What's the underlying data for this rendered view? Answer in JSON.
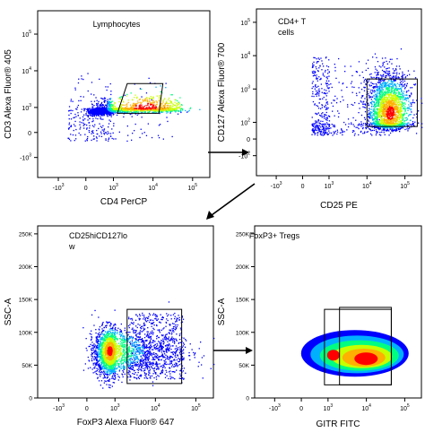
{
  "chart_data": [
    {
      "type": "scatter",
      "plot_style": "density pseudocolor",
      "gate_label": "Lymphocytes",
      "xlabel": "CD4 PerCP",
      "ylabel": "CD3 Alexa Fluor® 405",
      "x_scale": "biexponential",
      "y_scale": "biexponential",
      "x_ticks": [
        {
          "label": "-10",
          "sup": "3"
        },
        {
          "label": "0",
          "sup": ""
        },
        {
          "label": "10",
          "sup": "3"
        },
        {
          "label": "10",
          "sup": "4"
        },
        {
          "label": "10",
          "sup": "5"
        }
      ],
      "y_ticks": [
        {
          "label": "-10",
          "sup": "3"
        },
        {
          "label": "0",
          "sup": ""
        },
        {
          "label": "10",
          "sup": "3"
        },
        {
          "label": "10",
          "sup": "4"
        },
        {
          "label": "10",
          "sup": "5"
        }
      ],
      "population": {
        "x_center_log": 3.7,
        "y_center_log": 2.9,
        "x_spread": 1.2,
        "y_spread": 0.35
      },
      "gate": {
        "shape": "polygon",
        "x_range_log": [
          3.0,
          4.2
        ],
        "y_range_log": [
          2.3,
          3.7
        ]
      }
    },
    {
      "type": "scatter",
      "plot_style": "density pseudocolor",
      "gate_label_lines": [
        "CD4+ T",
        "cells"
      ],
      "xlabel": "CD25 PE",
      "ylabel": "CD127 Alexa Fluor® 700",
      "x_scale": "biexponential",
      "y_scale": "biexponential",
      "x_ticks": [
        {
          "label": "-10",
          "sup": "3"
        },
        {
          "label": "0",
          "sup": ""
        },
        {
          "label": "10",
          "sup": "3"
        },
        {
          "label": "10",
          "sup": "4"
        },
        {
          "label": "10",
          "sup": "5"
        }
      ],
      "y_ticks": [
        {
          "label": "-10",
          "sup": "2"
        },
        {
          "label": "0",
          "sup": ""
        },
        {
          "label": "10",
          "sup": "2"
        },
        {
          "label": "10",
          "sup": "3"
        },
        {
          "label": "10",
          "sup": "4"
        },
        {
          "label": "10",
          "sup": "5"
        }
      ],
      "population": {
        "x_center_log": 4.5,
        "y_center_log": 2.4,
        "x_spread": 0.5,
        "y_spread": 0.5
      },
      "gate": {
        "shape": "rectangle",
        "x_range_log": [
          4.0,
          5.3
        ],
        "y_range_log": [
          1.5,
          3.3
        ]
      }
    },
    {
      "type": "scatter",
      "plot_style": "density pseudocolor",
      "gate_label_lines": [
        "CD25hiCD127lo",
        "w"
      ],
      "xlabel": "FoxP3 Alexa Fluor® 647",
      "ylabel": "SSC-A",
      "x_scale": "biexponential",
      "y_scale": "linear",
      "ylim": [
        0,
        262144
      ],
      "x_ticks": [
        {
          "label": "-10",
          "sup": "3"
        },
        {
          "label": "0",
          "sup": ""
        },
        {
          "label": "10",
          "sup": "3"
        },
        {
          "label": "10",
          "sup": "4"
        },
        {
          "label": "10",
          "sup": "5"
        }
      ],
      "y_ticks": [
        "0",
        "50K",
        "100K",
        "150K",
        "200K",
        "250K"
      ],
      "population": {
        "x_center_log": 2.8,
        "y_center": 70000,
        "x_spread": 0.8,
        "y_spread": 20000
      },
      "gate": {
        "shape": "rectangle",
        "x_range_log": [
          3.3,
          4.65
        ],
        "y_range": [
          22000,
          135000
        ]
      }
    },
    {
      "type": "scatter",
      "plot_style": "contour filled",
      "gate_label": "FoxP3+ Tregs",
      "xlabel": "GITR FITC",
      "ylabel": "SSC-A",
      "x_scale": "biexponential",
      "y_scale": "linear",
      "ylim": [
        0,
        262144
      ],
      "x_ticks": [
        {
          "label": "-10",
          "sup": "3"
        },
        {
          "label": "0",
          "sup": ""
        },
        {
          "label": "10",
          "sup": "3"
        },
        {
          "label": "10",
          "sup": "4"
        },
        {
          "label": "10",
          "sup": "5"
        }
      ],
      "y_ticks": [
        "0",
        "50K",
        "100K",
        "150K",
        "200K",
        "250K"
      ],
      "population": {
        "x_center_log": 3.6,
        "y_center": 65000,
        "x_spread": 1.0,
        "y_spread": 30000
      },
      "gates": [
        {
          "shape": "rectangle",
          "x_range_log": [
            2.6,
            4.65
          ],
          "y_range": [
            20000,
            135000
          ]
        },
        {
          "shape": "rectangle",
          "x_range_log": [
            3.3,
            4.65
          ],
          "y_range": [
            20000,
            138000
          ]
        }
      ]
    }
  ],
  "colors": {
    "density": [
      "#0000ff",
      "#00b0ff",
      "#00ff80",
      "#c8ff00",
      "#ffb000",
      "#ff0000"
    ],
    "axis": "#000000"
  }
}
